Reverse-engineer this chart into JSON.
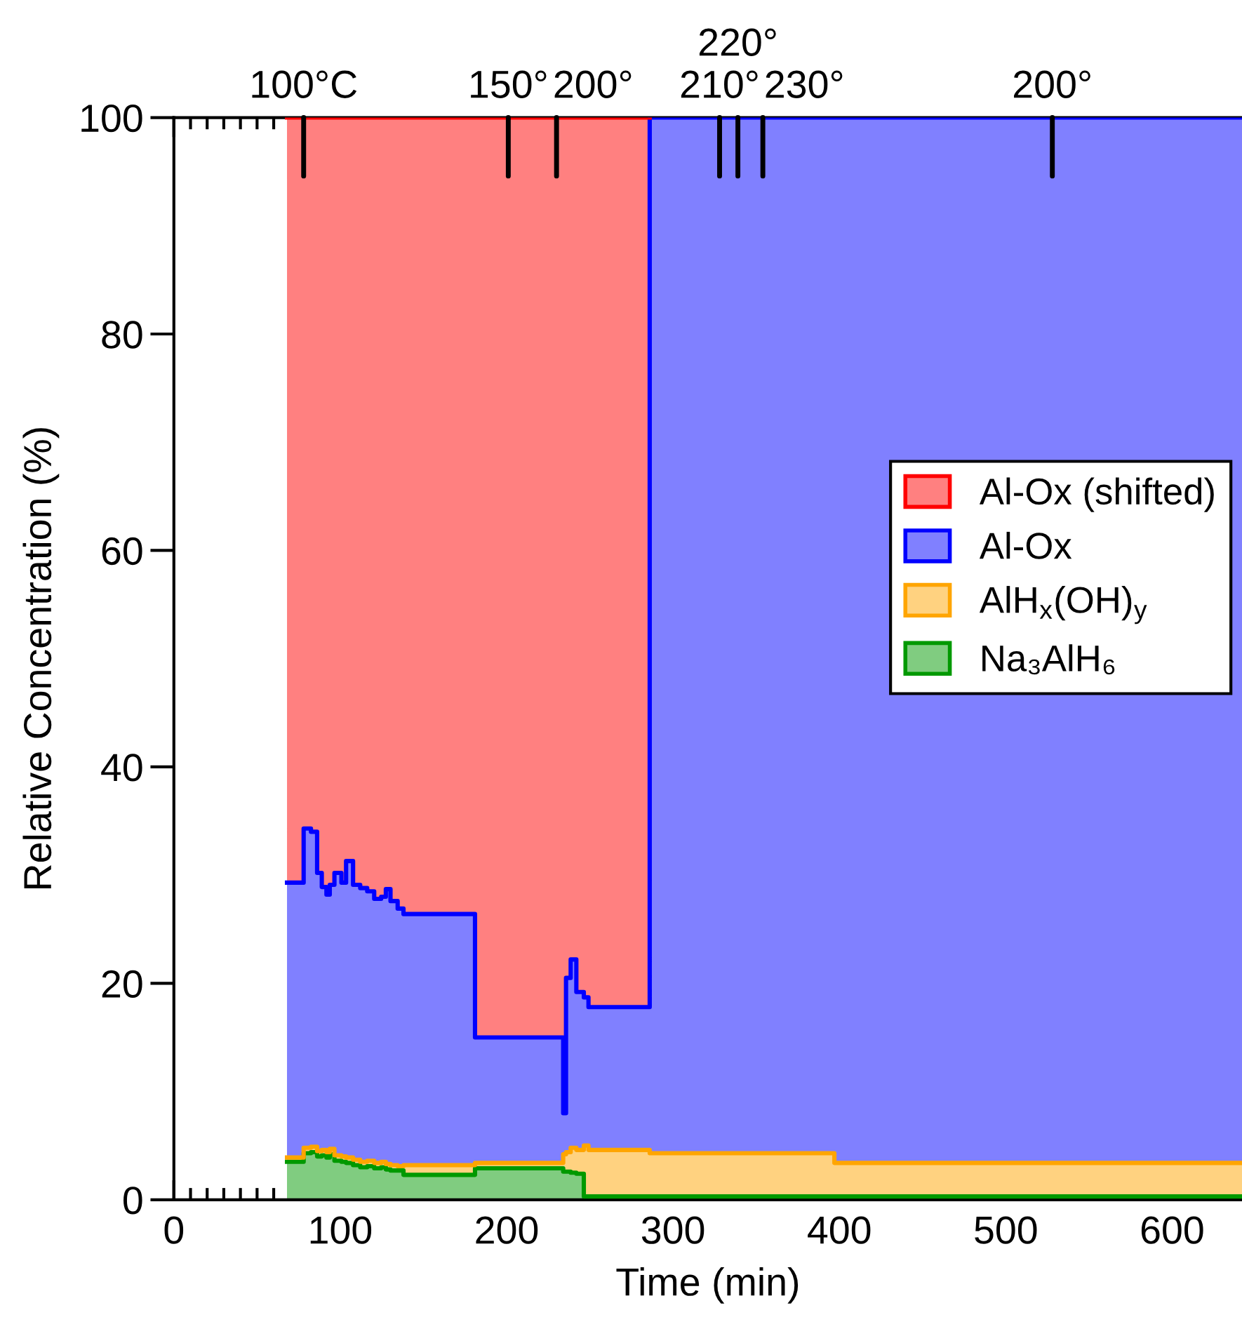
{
  "chart_data": {
    "type": "area",
    "stacked": true,
    "xlabel": "Time (min)",
    "ylabel": "Relative Concentration (%)",
    "x": [
      68,
      78,
      78,
      82.4,
      82.4,
      86.1,
      86.1,
      88.9,
      88.9,
      91.7,
      91.7,
      93.7,
      93.7,
      96.5,
      96.5,
      100.7,
      100.7,
      103.5,
      103.5,
      107.7,
      107.7,
      112,
      112,
      116.2,
      116.2,
      120.4,
      120.4,
      124.6,
      124.6,
      127.4,
      127.4,
      130.2,
      130.2,
      134.5,
      134.5,
      138,
      138,
      181,
      181,
      234,
      234,
      235.7,
      235.7,
      238.5,
      238.5,
      241.9,
      241.9,
      246.4,
      246.4,
      249.2,
      249.2,
      286,
      286,
      397,
      397,
      642
    ],
    "series": [
      {
        "name": "Na₃AlH₆",
        "color": "#009900",
        "values": [
          3.5,
          3.5,
          4.3,
          4.3,
          4.4,
          4.4,
          4.0,
          4.0,
          4.1,
          4.1,
          3.9,
          3.9,
          4.2,
          4.2,
          3.6,
          3.6,
          3.5,
          3.5,
          3.4,
          3.4,
          3.2,
          3.2,
          3.0,
          3.0,
          3.1,
          3.1,
          2.9,
          2.9,
          3.0,
          3.0,
          2.8,
          2.8,
          2.7,
          2.7,
          2.7,
          2.7,
          2.3,
          2.3,
          2.9,
          2.9,
          2.6,
          2.6,
          2.6,
          2.6,
          2.5,
          2.5,
          2.4,
          2.4,
          0.3,
          0.3,
          0.3,
          0.3,
          0.3,
          0.3,
          0.3,
          0.3
        ]
      },
      {
        "name": "AlH$_{x}$(OH)$_{y}$",
        "color": "#ffa500",
        "values": [
          0.4,
          0.4,
          0.5,
          0.5,
          0.5,
          0.5,
          0.5,
          0.5,
          0.5,
          0.5,
          0.5,
          0.5,
          0.5,
          0.5,
          0.5,
          0.5,
          0.5,
          0.5,
          0.5,
          0.5,
          0.5,
          0.5,
          0.5,
          0.5,
          0.5,
          0.5,
          0.5,
          0.5,
          0.5,
          0.5,
          0.5,
          0.5,
          0.5,
          0.5,
          0.4,
          0.4,
          0.9,
          0.9,
          0.5,
          0.5,
          1.6,
          1.6,
          1.8,
          1.8,
          2.3,
          2.3,
          2.2,
          2.2,
          4.7,
          4.7,
          4.3,
          4.3,
          4.0,
          4.0,
          3.1,
          3.1
        ]
      },
      {
        "name": "Al-Ox",
        "color": "#0000ff",
        "values": [
          25.4,
          25.4,
          29.5,
          29.5,
          29.1,
          29.1,
          25.7,
          25.7,
          24.3,
          24.3,
          23.8,
          23.8,
          24.4,
          24.4,
          26.1,
          26.1,
          25.3,
          25.3,
          27.4,
          27.4,
          25.4,
          25.4,
          25.3,
          25.3,
          24.9,
          24.9,
          24.4,
          24.4,
          24.5,
          24.5,
          25.4,
          25.4,
          24.4,
          24.4,
          23.8,
          23.8,
          23.2,
          23.2,
          11.6,
          11.6,
          3.8,
          3.8,
          16.1,
          16.1,
          17.4,
          17.4,
          14.6,
          14.6,
          13.7,
          13.7,
          13.2,
          13.2,
          95.7,
          95.7,
          96.6,
          96.6
        ]
      },
      {
        "name": "Al-Ox (shifted)",
        "color": "#ff0000",
        "values": [
          70.7,
          70.7,
          65.7,
          65.7,
          66.0,
          66.0,
          69.8,
          69.8,
          71.1,
          71.1,
          71.8,
          71.8,
          70.9,
          70.9,
          69.8,
          69.8,
          70.7,
          70.7,
          68.7,
          68.7,
          70.9,
          70.9,
          71.2,
          71.2,
          71.5,
          71.5,
          72.2,
          72.2,
          72.0,
          72.0,
          71.3,
          71.3,
          72.4,
          72.4,
          73.1,
          73.1,
          73.6,
          73.6,
          85.0,
          85.0,
          92.0,
          92.0,
          79.5,
          79.5,
          77.8,
          77.8,
          80.8,
          80.8,
          81.3,
          81.3,
          82.2,
          82.2,
          0,
          0,
          0,
          0
        ]
      }
    ],
    "xlim": [
      0,
      642
    ],
    "xticks": [
      0,
      100,
      200,
      300,
      400,
      500,
      600
    ],
    "ylim": [
      0,
      100
    ],
    "yticks": [
      0,
      20,
      40,
      60,
      80,
      100
    ],
    "annotations": [
      {
        "text": "100°C",
        "x": 78,
        "y": 100
      },
      {
        "text": "150°",
        "x": 201,
        "y": 100
      },
      {
        "text": "200°",
        "x": 230,
        "y": 100
      },
      {
        "text": "210°",
        "x": 328,
        "y": 100
      },
      {
        "text": "220°",
        "x": 339,
        "y": 100
      },
      {
        "text": "230°",
        "x": 354,
        "y": 100
      },
      {
        "text": "200°",
        "x": 528,
        "y": 100
      }
    ],
    "legend": "right"
  }
}
